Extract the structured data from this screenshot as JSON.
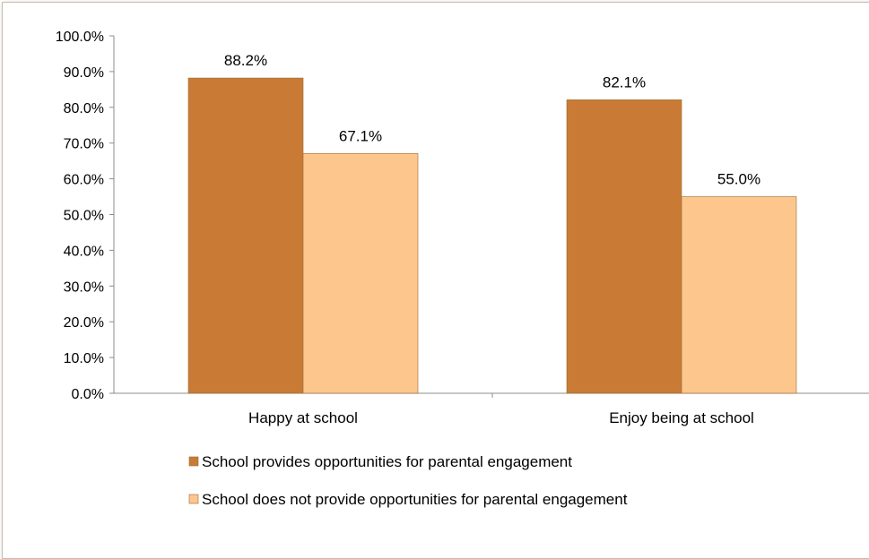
{
  "chart_data": {
    "type": "bar",
    "categories": [
      "Happy at school",
      "Enjoy being at school"
    ],
    "series": [
      {
        "name": "School provides opportunities for parental engagement",
        "values": [
          88.2,
          82.1
        ],
        "color": "#c97b36"
      },
      {
        "name": "School does not provide opportunities for parental engagement",
        "values": [
          67.1,
          55.0
        ],
        "color": "#fcc68d"
      }
    ],
    "data_labels": [
      [
        "88.2%",
        "82.1%"
      ],
      [
        "67.1%",
        "55.0%"
      ]
    ],
    "y_ticks": [
      "0.0%",
      "10.0%",
      "20.0%",
      "30.0%",
      "40.0%",
      "50.0%",
      "60.0%",
      "70.0%",
      "80.0%",
      "90.0%",
      "100.0%"
    ],
    "ylim": [
      0,
      100
    ],
    "title": "",
    "xlabel": "",
    "ylabel": "",
    "grid": false,
    "legend_position": "bottom"
  }
}
